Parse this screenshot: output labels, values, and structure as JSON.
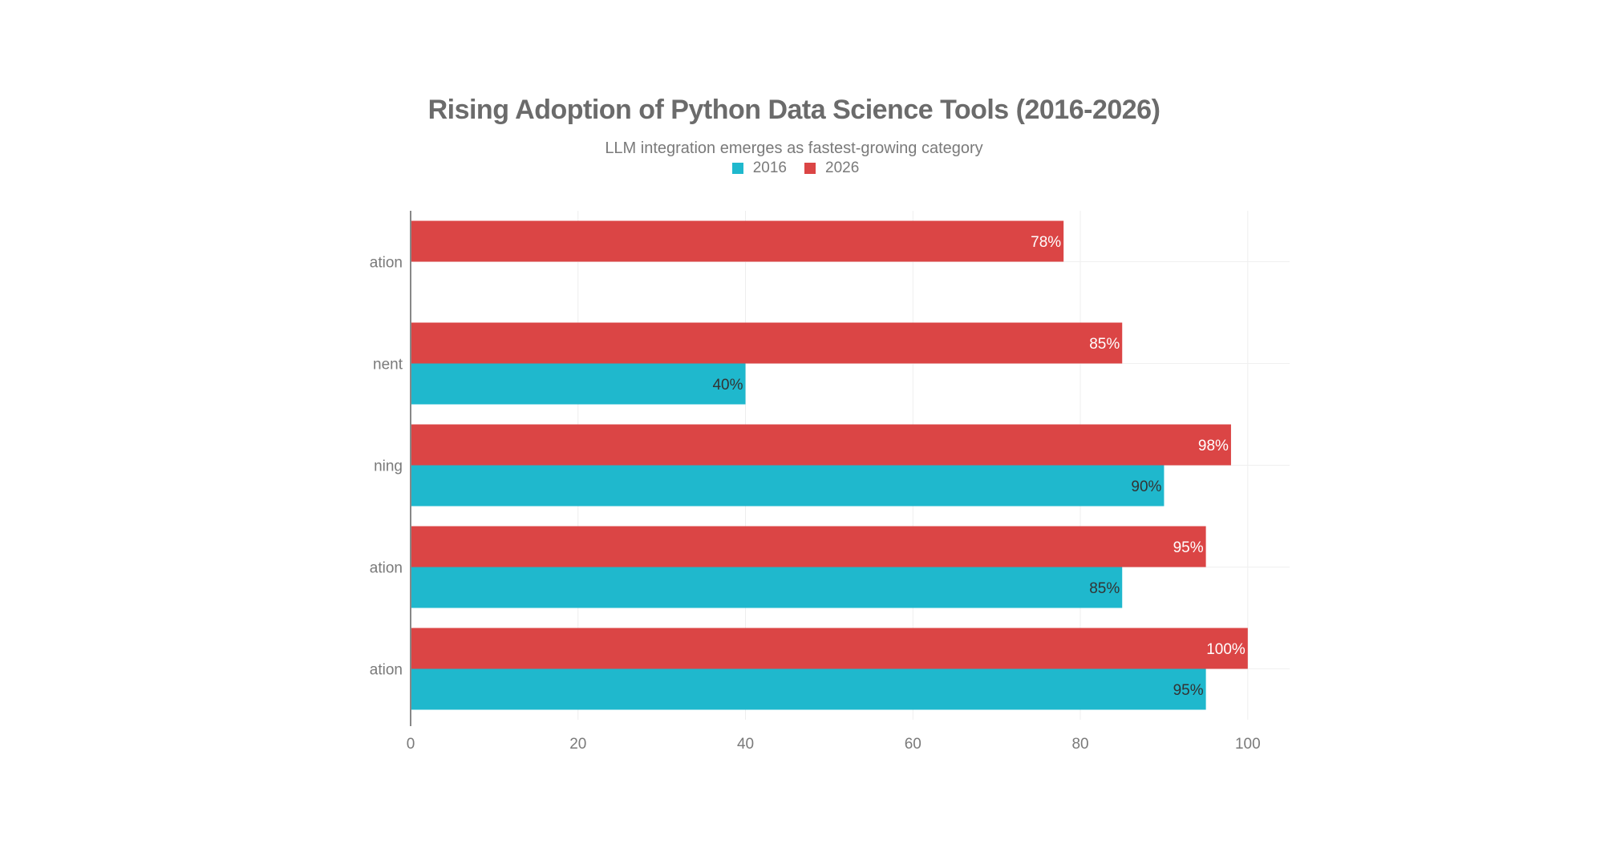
{
  "chart_data": {
    "type": "bar",
    "orientation": "horizontal",
    "title": "Rising Adoption of Python Data Science Tools (2016-2026)",
    "subtitle": "LLM integration emerges as fastest-growing category",
    "categories": [
      "ation",
      "nent",
      "ning",
      "ation",
      "ation"
    ],
    "categories_note": "category labels are clipped on the left in the image; only visible fragments shown, listed top to bottom",
    "series": [
      {
        "name": "2016",
        "color": "#1fb8cd",
        "label_color": "#333333",
        "values": [
          null,
          40,
          90,
          85,
          95
        ],
        "labels": [
          "",
          "40%",
          "90%",
          "85%",
          "95%"
        ]
      },
      {
        "name": "2026",
        "color": "#db4545",
        "label_color": "#ffffff",
        "values": [
          78,
          85,
          98,
          95,
          100
        ],
        "labels": [
          "78%",
          "85%",
          "98%",
          "95%",
          "100%"
        ]
      }
    ],
    "xlabel": "",
    "ylabel": "",
    "xlim": [
      0,
      105
    ],
    "xticks": [
      0,
      20,
      40,
      60,
      80,
      100
    ],
    "xtick_labels": [
      "0",
      "20",
      "40",
      "60",
      "80",
      "100"
    ],
    "grid": true,
    "legend_position": "top-center"
  }
}
